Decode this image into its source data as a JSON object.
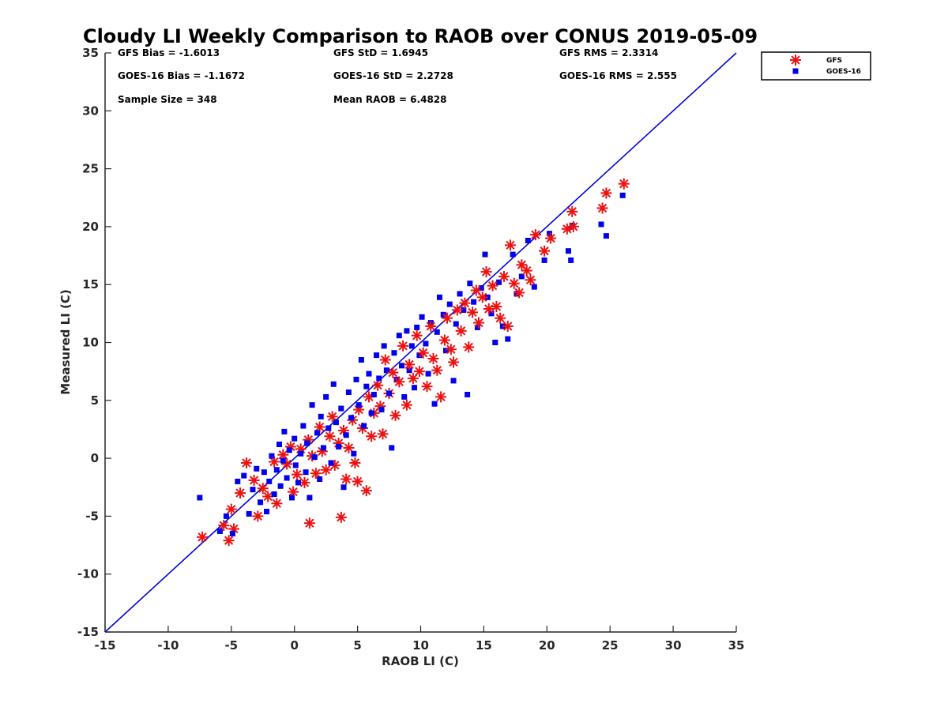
{
  "chart_data": {
    "type": "scatter",
    "title": "Cloudy LI Weekly Comparison to RAOB over CONUS 2019-05-09",
    "xlabel": "RAOB LI (C)",
    "ylabel": "Measured LI (C)",
    "xlim": [
      -15,
      35
    ],
    "ylim": [
      -15,
      35
    ],
    "xticks": [
      -15,
      -10,
      -5,
      0,
      5,
      10,
      15,
      20,
      25,
      30,
      35
    ],
    "yticks": [
      -15,
      -10,
      -5,
      0,
      5,
      10,
      15,
      20,
      25,
      30,
      35
    ],
    "grid": false,
    "legend_position": "outside top-right",
    "reference_line": {
      "from": [
        -15,
        -15
      ],
      "to": [
        35,
        35
      ],
      "color": "#0000dd"
    },
    "stats": {
      "gfs_bias": "GFS Bias = -1.6013",
      "gfs_std": "GFS StD = 1.6945",
      "gfs_rms": "GFS RMS = 2.3314",
      "goes_bias": "GOES-16 Bias = -1.1672",
      "goes_std": "GOES-16 StD = 2.2728",
      "goes_rms": "GOES-16 RMS = 2.555",
      "sample_size": "Sample Size = 348",
      "mean_raob": "Mean RAOB = 6.4828"
    },
    "series": [
      {
        "name": "GFS",
        "marker": "asterisk",
        "color": "#ee1111",
        "points": [
          [
            -7.3,
            -6.8
          ],
          [
            -5.2,
            -7.1
          ],
          [
            -5.6,
            -5.8
          ],
          [
            -4.8,
            -6.1
          ],
          [
            -5.0,
            -4.4
          ],
          [
            -4.3,
            -3.0
          ],
          [
            -3.8,
            -0.4
          ],
          [
            -3.2,
            -1.9
          ],
          [
            -2.9,
            -5.0
          ],
          [
            -2.5,
            -2.6
          ],
          [
            -2.1,
            -3.3
          ],
          [
            -1.6,
            -0.3
          ],
          [
            -1.4,
            -3.9
          ],
          [
            -0.9,
            0.3
          ],
          [
            -0.6,
            -0.5
          ],
          [
            -0.3,
            1.0
          ],
          [
            -0.1,
            -2.9
          ],
          [
            0.2,
            -1.4
          ],
          [
            0.5,
            0.8
          ],
          [
            0.8,
            -2.1
          ],
          [
            1.1,
            1.6
          ],
          [
            1.2,
            -5.6
          ],
          [
            1.4,
            0.2
          ],
          [
            1.7,
            -1.3
          ],
          [
            2.0,
            2.7
          ],
          [
            2.2,
            0.6
          ],
          [
            2.5,
            -1.0
          ],
          [
            2.8,
            1.9
          ],
          [
            3.0,
            3.6
          ],
          [
            3.2,
            -0.6
          ],
          [
            3.5,
            1.3
          ],
          [
            3.7,
            -5.1
          ],
          [
            3.9,
            2.4
          ],
          [
            4.1,
            -1.8
          ],
          [
            4.3,
            0.9
          ],
          [
            4.6,
            3.3
          ],
          [
            4.8,
            -0.4
          ],
          [
            5.0,
            -2.0
          ],
          [
            5.1,
            4.2
          ],
          [
            5.4,
            2.6
          ],
          [
            5.7,
            -2.8
          ],
          [
            5.9,
            5.3
          ],
          [
            6.1,
            1.9
          ],
          [
            6.3,
            3.9
          ],
          [
            6.6,
            6.3
          ],
          [
            6.8,
            4.5
          ],
          [
            7.0,
            2.1
          ],
          [
            7.2,
            8.5
          ],
          [
            7.5,
            5.6
          ],
          [
            7.8,
            7.4
          ],
          [
            8.0,
            3.7
          ],
          [
            8.3,
            6.6
          ],
          [
            8.6,
            9.7
          ],
          [
            8.9,
            4.6
          ],
          [
            9.1,
            8.1
          ],
          [
            9.4,
            6.9
          ],
          [
            9.7,
            10.6
          ],
          [
            9.9,
            7.5
          ],
          [
            10.2,
            9.1
          ],
          [
            10.5,
            6.2
          ],
          [
            10.8,
            11.4
          ],
          [
            11.0,
            8.6
          ],
          [
            11.3,
            7.6
          ],
          [
            11.6,
            5.3
          ],
          [
            11.9,
            10.2
          ],
          [
            12.1,
            12.1
          ],
          [
            12.4,
            9.4
          ],
          [
            12.6,
            8.3
          ],
          [
            12.9,
            12.8
          ],
          [
            13.2,
            11.0
          ],
          [
            13.5,
            13.4
          ],
          [
            13.8,
            9.6
          ],
          [
            14.1,
            12.6
          ],
          [
            14.4,
            14.5
          ],
          [
            14.6,
            11.7
          ],
          [
            14.9,
            13.9
          ],
          [
            15.2,
            16.1
          ],
          [
            15.4,
            12.9
          ],
          [
            15.7,
            14.9
          ],
          [
            16.0,
            13.1
          ],
          [
            16.3,
            12.1
          ],
          [
            16.6,
            15.7
          ],
          [
            16.9,
            11.4
          ],
          [
            17.1,
            18.4
          ],
          [
            17.4,
            15.1
          ],
          [
            17.8,
            14.3
          ],
          [
            18.0,
            16.7
          ],
          [
            18.4,
            16.2
          ],
          [
            18.7,
            15.4
          ],
          [
            19.1,
            19.3
          ],
          [
            19.8,
            17.9
          ],
          [
            20.3,
            19.0
          ],
          [
            21.6,
            19.8
          ],
          [
            22.0,
            21.3
          ],
          [
            22.1,
            20.0
          ],
          [
            24.4,
            21.6
          ],
          [
            24.7,
            22.9
          ],
          [
            26.1,
            23.7
          ]
        ]
      },
      {
        "name": "GOES-16",
        "marker": "square",
        "color": "#0000ee",
        "points": [
          [
            -7.5,
            -3.4
          ],
          [
            -5.9,
            -6.3
          ],
          [
            -5.4,
            -5.0
          ],
          [
            -4.9,
            -6.5
          ],
          [
            -4.5,
            -2.0
          ],
          [
            -4.0,
            -1.5
          ],
          [
            -3.6,
            -4.8
          ],
          [
            -3.3,
            -2.7
          ],
          [
            -3.0,
            -0.9
          ],
          [
            -2.7,
            -3.8
          ],
          [
            -2.4,
            -1.2
          ],
          [
            -2.2,
            -4.6
          ],
          [
            -2.0,
            -2.0
          ],
          [
            -1.8,
            0.2
          ],
          [
            -1.6,
            -3.1
          ],
          [
            -1.4,
            -1.0
          ],
          [
            -1.2,
            1.2
          ],
          [
            -1.1,
            -2.4
          ],
          [
            -0.9,
            -0.2
          ],
          [
            -0.8,
            2.3
          ],
          [
            -0.6,
            -1.7
          ],
          [
            -0.4,
            0.7
          ],
          [
            -0.2,
            -3.4
          ],
          [
            0.0,
            1.7
          ],
          [
            0.1,
            -0.6
          ],
          [
            0.3,
            -2.1
          ],
          [
            0.5,
            0.4
          ],
          [
            0.7,
            2.8
          ],
          [
            0.9,
            -1.2
          ],
          [
            1.0,
            1.3
          ],
          [
            1.2,
            -3.4
          ],
          [
            1.4,
            4.6
          ],
          [
            1.6,
            0.1
          ],
          [
            1.8,
            2.2
          ],
          [
            2.0,
            -1.8
          ],
          [
            2.1,
            3.6
          ],
          [
            2.3,
            0.9
          ],
          [
            2.5,
            5.3
          ],
          [
            2.7,
            2.6
          ],
          [
            2.9,
            -0.4
          ],
          [
            3.1,
            6.4
          ],
          [
            3.3,
            3.1
          ],
          [
            3.5,
            1.0
          ],
          [
            3.7,
            4.3
          ],
          [
            3.9,
            -2.5
          ],
          [
            4.1,
            2.0
          ],
          [
            4.3,
            5.7
          ],
          [
            4.5,
            3.5
          ],
          [
            4.7,
            0.4
          ],
          [
            4.9,
            6.8
          ],
          [
            5.1,
            4.6
          ],
          [
            5.3,
            8.5
          ],
          [
            5.5,
            2.8
          ],
          [
            5.7,
            6.2
          ],
          [
            5.9,
            7.3
          ],
          [
            6.1,
            3.9
          ],
          [
            6.3,
            5.5
          ],
          [
            6.5,
            8.9
          ],
          [
            6.7,
            6.9
          ],
          [
            6.9,
            4.2
          ],
          [
            7.1,
            9.7
          ],
          [
            7.3,
            7.6
          ],
          [
            7.5,
            5.6
          ],
          [
            7.7,
            0.9
          ],
          [
            7.9,
            9.1
          ],
          [
            8.1,
            6.8
          ],
          [
            8.3,
            10.6
          ],
          [
            8.5,
            8.0
          ],
          [
            8.7,
            5.3
          ],
          [
            8.9,
            11.0
          ],
          [
            9.1,
            7.6
          ],
          [
            9.3,
            9.7
          ],
          [
            9.5,
            6.1
          ],
          [
            9.7,
            11.3
          ],
          [
            9.9,
            8.9
          ],
          [
            10.1,
            12.2
          ],
          [
            10.4,
            9.9
          ],
          [
            10.6,
            7.3
          ],
          [
            10.8,
            11.7
          ],
          [
            11.1,
            4.7
          ],
          [
            11.3,
            10.9
          ],
          [
            11.5,
            13.9
          ],
          [
            11.8,
            12.4
          ],
          [
            12.0,
            9.3
          ],
          [
            12.3,
            13.3
          ],
          [
            12.6,
            6.7
          ],
          [
            12.8,
            11.6
          ],
          [
            13.1,
            14.2
          ],
          [
            13.4,
            12.8
          ],
          [
            13.7,
            5.5
          ],
          [
            13.9,
            15.1
          ],
          [
            14.2,
            13.5
          ],
          [
            14.5,
            11.3
          ],
          [
            14.8,
            14.7
          ],
          [
            15.1,
            17.6
          ],
          [
            15.3,
            13.9
          ],
          [
            15.6,
            12.5
          ],
          [
            15.9,
            10.0
          ],
          [
            16.2,
            15.2
          ],
          [
            16.5,
            11.4
          ],
          [
            16.9,
            10.3
          ],
          [
            17.3,
            17.6
          ],
          [
            17.6,
            14.2
          ],
          [
            18.0,
            15.7
          ],
          [
            18.5,
            18.8
          ],
          [
            19.0,
            14.8
          ],
          [
            19.8,
            17.1
          ],
          [
            20.2,
            19.4
          ],
          [
            21.7,
            17.9
          ],
          [
            21.9,
            17.1
          ],
          [
            22.0,
            20.1
          ],
          [
            24.3,
            20.2
          ],
          [
            24.7,
            19.2
          ],
          [
            26.0,
            22.7
          ]
        ]
      }
    ]
  }
}
